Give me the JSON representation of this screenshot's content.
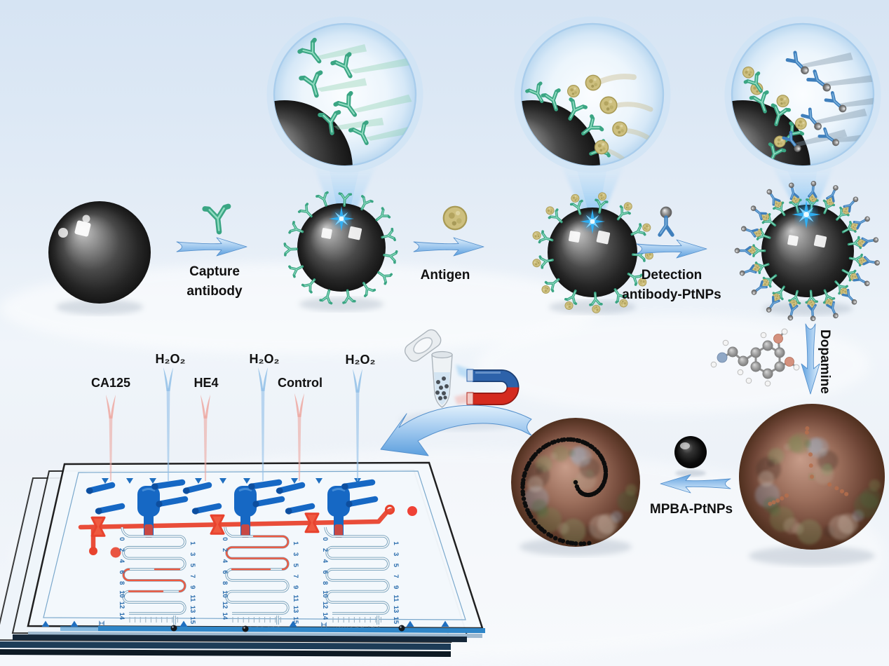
{
  "labels": {
    "capture_line1": "Capture",
    "capture_line2": "antibody",
    "antigen": "Antigen",
    "detection_line1": "Detection",
    "detection_line2": "antibody-PtNPs",
    "dopamine": "Dopamine",
    "mpba_ptnps": "MPBA-PtNPs"
  },
  "chip": {
    "inlets": [
      {
        "label": "CA125",
        "type": "sample",
        "color": "#eda8a2"
      },
      {
        "label": "H₂O₂",
        "type": "reagent",
        "color": "#92bfe8"
      },
      {
        "label": "HE4",
        "type": "sample",
        "color": "#eda8a2"
      },
      {
        "label": "H₂O₂",
        "type": "reagent",
        "color": "#92bfe8"
      },
      {
        "label": "Control",
        "type": "sample",
        "color": "#eda8a2"
      },
      {
        "label": "H₂O₂",
        "type": "reagent",
        "color": "#92bfe8"
      }
    ],
    "serpentine_left_numbers": [
      "0",
      "2",
      "4",
      "6",
      "8",
      "10",
      "12",
      "14"
    ],
    "serpentine_right_numbers": [
      "1",
      "3",
      "5",
      "7",
      "9",
      "11",
      "13",
      "15"
    ],
    "ruler_numbers": [
      "1",
      "2",
      "3",
      "4",
      "5",
      "6",
      "7",
      "8",
      "9"
    ]
  },
  "colors": {
    "arrow_blue": "#6aa9e0",
    "channel_blue": "#1668c4",
    "channel_red": "#e8432e",
    "antibody_green": "#45b08c",
    "antibody_blue": "#3f7fbc",
    "antigen_yellow": "#cdbf7e",
    "magnet_blue": "#2d62aa",
    "magnet_red": "#d42a1e",
    "bead_dark": "#2a2a2a",
    "nanocluster_brown": "#9c6f5c"
  }
}
